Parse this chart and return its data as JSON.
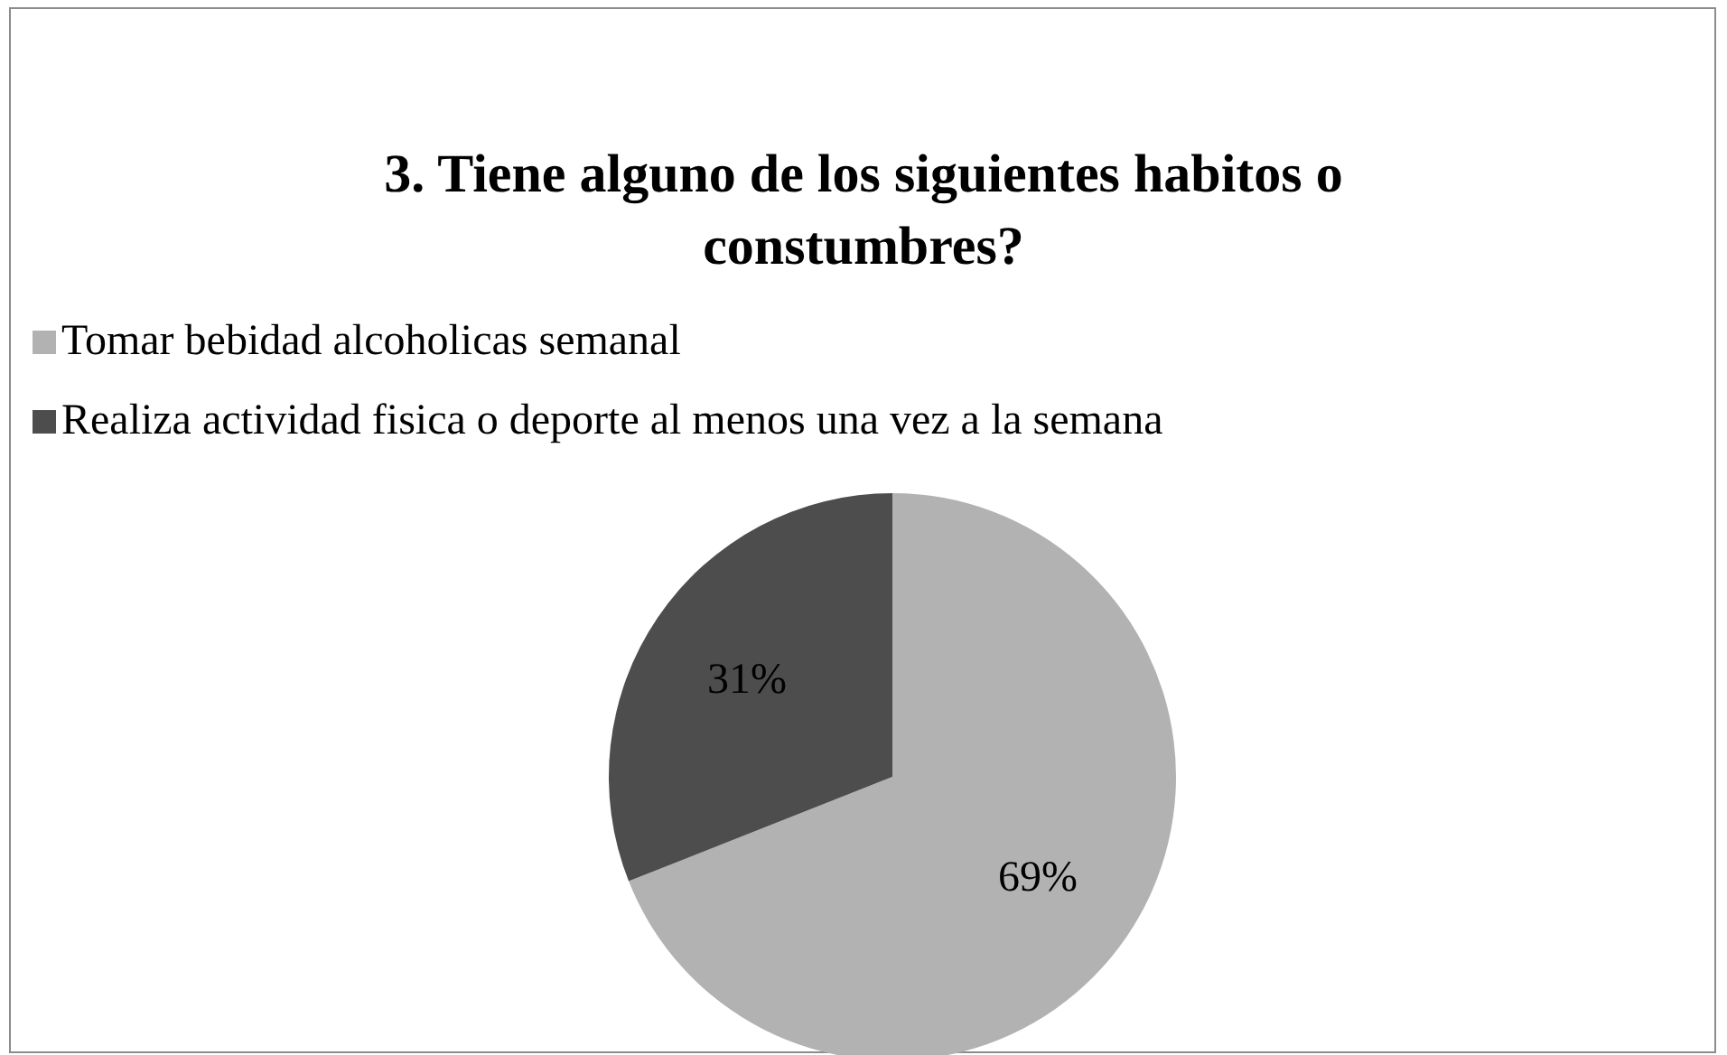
{
  "chart_data": {
    "type": "pie",
    "title": "3. Tiene alguno de los siguientes habitos o constumbres?",
    "categories": [
      "Tomar bebidad alcoholicas semanal",
      "Realiza actividad fisica o deporte al menos una vez a la semana"
    ],
    "values": [
      69,
      31
    ],
    "colors": [
      "#b2b2b2",
      "#4d4d4d"
    ],
    "value_labels": [
      "69%",
      "31%"
    ],
    "legend": "top"
  }
}
